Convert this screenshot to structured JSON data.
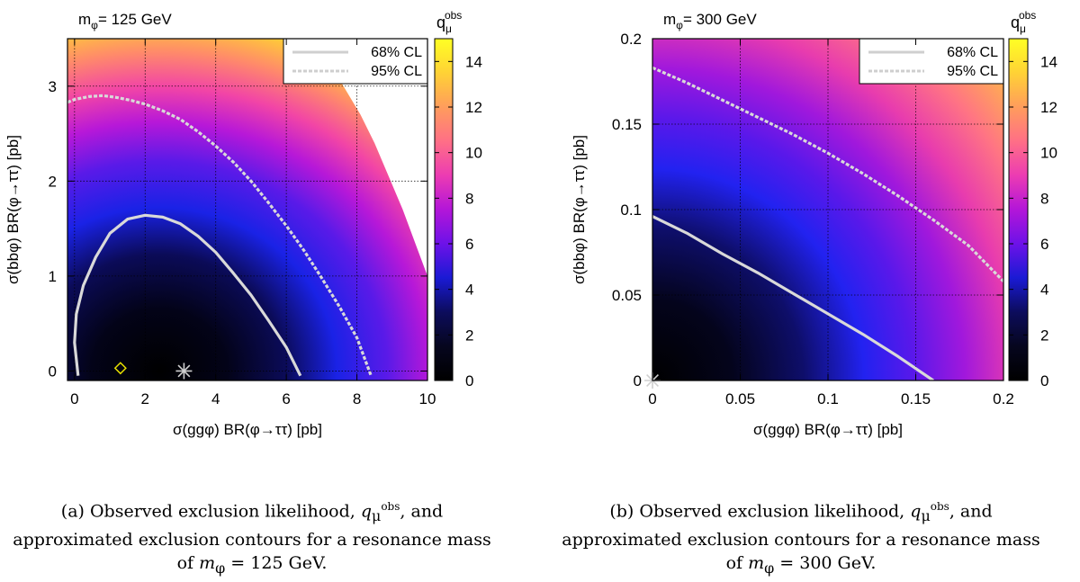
{
  "chart_data": [
    {
      "type": "heatmap",
      "panel_title_prefix": "m",
      "panel_title_sub": "φ",
      "panel_title_value": "= 125 GeV",
      "xlabel": "σ(ggφ) BR(φ→ττ) [pb]",
      "ylabel": "σ(bbφ) BR(φ→ττ) [pb]",
      "xlim": [
        -0.2,
        10
      ],
      "ylim": [
        -0.1,
        3.5
      ],
      "xticks": [
        0,
        2,
        4,
        6,
        8,
        10
      ],
      "xtick_labels": [
        "0",
        "2",
        "4",
        "6",
        "8",
        "10"
      ],
      "yticks": [
        0,
        1,
        2,
        3
      ],
      "ytick_labels": [
        "0",
        "1",
        "2",
        "3"
      ],
      "grid": true,
      "colorbar": {
        "label": "q",
        "label_sub": "μ",
        "label_sup": "obs",
        "range": [
          0,
          15
        ],
        "ticks": [
          0,
          2,
          4,
          6,
          8,
          10,
          12,
          14
        ],
        "tick_labels": [
          "0",
          "2",
          "4",
          "6",
          "8",
          "10",
          "12",
          "14"
        ]
      },
      "best_fit": {
        "x": 3.1,
        "y": 0.0,
        "marker": "star"
      },
      "expected_point": {
        "x": 1.3,
        "y": 0.03,
        "marker": "diamond"
      },
      "legend": {
        "position": "top-right",
        "entries": [
          {
            "label": "68% CL",
            "style": "solid"
          },
          {
            "label": "95% CL",
            "style": "dashed"
          }
        ]
      },
      "contours": [
        {
          "name": "68% CL",
          "style": "solid",
          "points": [
            [
              0.1,
              -0.05
            ],
            [
              0.0,
              0.3
            ],
            [
              0.05,
              0.6
            ],
            [
              0.25,
              0.9
            ],
            [
              0.6,
              1.2
            ],
            [
              1.0,
              1.45
            ],
            [
              1.5,
              1.6
            ],
            [
              2.0,
              1.64
            ],
            [
              2.5,
              1.62
            ],
            [
              3.0,
              1.55
            ],
            [
              3.5,
              1.42
            ],
            [
              4.0,
              1.25
            ],
            [
              4.5,
              1.03
            ],
            [
              5.0,
              0.8
            ],
            [
              5.5,
              0.53
            ],
            [
              6.0,
              0.25
            ],
            [
              6.4,
              -0.05
            ]
          ]
        },
        {
          "name": "95% CL",
          "style": "dashed",
          "points": [
            [
              -0.2,
              2.83
            ],
            [
              0.0,
              2.86
            ],
            [
              0.4,
              2.89
            ],
            [
              0.8,
              2.9
            ],
            [
              1.2,
              2.88
            ],
            [
              1.6,
              2.85
            ],
            [
              2.0,
              2.81
            ],
            [
              2.5,
              2.74
            ],
            [
              3.0,
              2.65
            ],
            [
              3.5,
              2.52
            ],
            [
              4.0,
              2.37
            ],
            [
              4.5,
              2.2
            ],
            [
              5.0,
              2.0
            ],
            [
              5.5,
              1.77
            ],
            [
              6.0,
              1.53
            ],
            [
              6.5,
              1.27
            ],
            [
              7.0,
              0.98
            ],
            [
              7.5,
              0.68
            ],
            [
              8.0,
              0.35
            ],
            [
              8.4,
              -0.05
            ]
          ]
        }
      ]
    },
    {
      "type": "heatmap",
      "panel_title_prefix": "m",
      "panel_title_sub": "φ",
      "panel_title_value": "= 300 GeV",
      "xlabel": "σ(ggφ) BR(φ→ττ) [pb]",
      "ylabel": "σ(bbφ) BR(φ→ττ) [pb]",
      "xlim": [
        0,
        0.2
      ],
      "ylim": [
        0,
        0.2
      ],
      "xticks": [
        0,
        0.05,
        0.1,
        0.15,
        0.2
      ],
      "xtick_labels": [
        "0",
        "0.05",
        "0.1",
        "0.15",
        "0.2"
      ],
      "yticks": [
        0,
        0.05,
        0.1,
        0.15,
        0.2
      ],
      "ytick_labels": [
        "0",
        "0.05",
        "0.1",
        "0.15",
        "0.2"
      ],
      "grid": true,
      "colorbar": {
        "label": "q",
        "label_sub": "μ",
        "label_sup": "obs",
        "range": [
          0,
          15
        ],
        "ticks": [
          0,
          2,
          4,
          6,
          8,
          10,
          12,
          14
        ],
        "tick_labels": [
          "0",
          "2",
          "4",
          "6",
          "8",
          "10",
          "12",
          "14"
        ]
      },
      "best_fit": {
        "x": 0.0,
        "y": 0.0,
        "marker": "star"
      },
      "legend": {
        "position": "top-right",
        "entries": [
          {
            "label": "68% CL",
            "style": "solid"
          },
          {
            "label": "95% CL",
            "style": "dashed"
          }
        ]
      },
      "contours": [
        {
          "name": "68% CL",
          "style": "solid",
          "points": [
            [
              0.0,
              0.096
            ],
            [
              0.02,
              0.086
            ],
            [
              0.04,
              0.074
            ],
            [
              0.06,
              0.063
            ],
            [
              0.08,
              0.051
            ],
            [
              0.1,
              0.039
            ],
            [
              0.12,
              0.027
            ],
            [
              0.14,
              0.014
            ],
            [
              0.16,
              0.0
            ]
          ]
        },
        {
          "name": "95% CL",
          "style": "dashed",
          "points": [
            [
              0.0,
              0.183
            ],
            [
              0.02,
              0.174
            ],
            [
              0.04,
              0.164
            ],
            [
              0.06,
              0.154
            ],
            [
              0.08,
              0.144
            ],
            [
              0.1,
              0.133
            ],
            [
              0.12,
              0.121
            ],
            [
              0.14,
              0.108
            ],
            [
              0.16,
              0.094
            ],
            [
              0.18,
              0.079
            ],
            [
              0.2,
              0.058
            ]
          ]
        }
      ]
    }
  ],
  "captions": [
    {
      "prefix": "(a) Observed exclusion likelihood, ",
      "math_var": "q",
      "math_sub": "μ",
      "math_sup": "obs",
      "middle": ", and",
      "line2": "approximated exclusion contours for a resonance mass",
      "line3_prefix": "of ",
      "line3_math": "m",
      "line3_sub": "φ",
      "line3_value": " = 125 GeV."
    },
    {
      "prefix": "(b) Observed exclusion likelihood, ",
      "math_var": "q",
      "math_sub": "μ",
      "math_sup": "obs",
      "middle": ", and",
      "line2": "approximated exclusion contours for a resonance mass",
      "line3_prefix": "of ",
      "line3_math": "m",
      "line3_sub": "φ",
      "line3_value": " = 300 GeV."
    }
  ]
}
